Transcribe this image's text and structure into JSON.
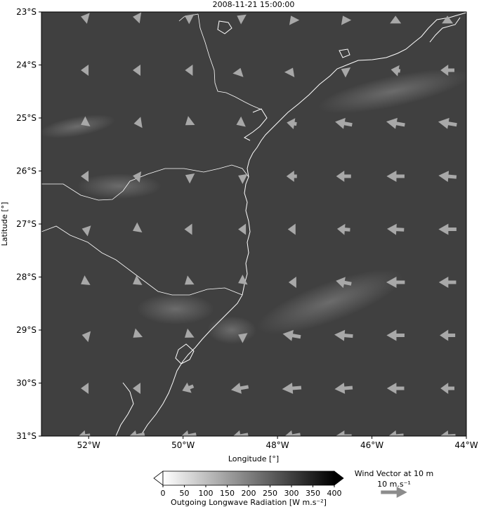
{
  "title": "2008-11-21 15:00:00",
  "map": {
    "lon_range": [
      -53,
      -44
    ],
    "lat_range": [
      -31,
      -23
    ],
    "field_color": "#404040",
    "coast_color": "#ffffff"
  },
  "axes": {
    "xlabel": "Longitude [°]",
    "ylabel": "Latitude [°]",
    "xticks": [
      {
        "value": -52,
        "label": "52°W"
      },
      {
        "value": -50,
        "label": "50°W"
      },
      {
        "value": -48,
        "label": "48°W"
      },
      {
        "value": -46,
        "label": "46°W"
      },
      {
        "value": -44,
        "label": "44°W"
      }
    ],
    "yticks": [
      {
        "value": -23,
        "label": "23°S"
      },
      {
        "value": -24,
        "label": "24°S"
      },
      {
        "value": -25,
        "label": "25°S"
      },
      {
        "value": -26,
        "label": "26°S"
      },
      {
        "value": -27,
        "label": "27°S"
      },
      {
        "value": -28,
        "label": "28°S"
      },
      {
        "value": -29,
        "label": "29°S"
      },
      {
        "value": -30,
        "label": "30°S"
      },
      {
        "value": -31,
        "label": "31°S"
      }
    ]
  },
  "colorbar": {
    "label": "Outgoing Longwave Radiation [W m.s⁻²]",
    "ticks": [
      "0",
      "50",
      "100",
      "150",
      "200",
      "250",
      "300",
      "350",
      "400"
    ],
    "range": [
      0,
      400
    ],
    "color_low": "#ffffff",
    "color_high": "#000000"
  },
  "wind_key": {
    "title": "Wind Vector at 10 m",
    "label": "10 m.s⁻¹",
    "speed": 10,
    "arrow_color": "#8c8c8c"
  },
  "wind": {
    "arrow_color": "#a8a8a8",
    "lons": [
      -52.1,
      -51.0,
      -49.9,
      -48.8,
      -47.7,
      -46.6,
      -45.5,
      -44.4
    ],
    "lats": [
      -23.1,
      -24.1,
      -25.1,
      -26.1,
      -27.1,
      -28.1,
      -29.1,
      -30.1,
      -31.0
    ],
    "u": [
      [
        -2,
        -2,
        -2,
        -1.8,
        -0.5,
        -0.5,
        0,
        0
      ],
      [
        -2,
        -2,
        -1.8,
        0.5,
        0.8,
        -1.6,
        -3,
        -4.5
      ],
      [
        -2,
        -1.3,
        -1.6,
        -2.2,
        -3.2,
        -5.5,
        -6,
        -6
      ],
      [
        -2,
        -2,
        -1.6,
        -1,
        -3.4,
        -4.8,
        -5.8,
        -5.8
      ],
      [
        -1.3,
        -2,
        -2.2,
        -1,
        -2.5,
        -4.2,
        -5.5,
        -5.8
      ],
      [
        -2,
        -2,
        -2,
        -1,
        -2,
        -5,
        -6,
        -5.6
      ],
      [
        -1.3,
        -1.8,
        -2,
        -1,
        -5.8,
        -6,
        -5.8,
        -5
      ],
      [
        -2,
        -2,
        -3.6,
        -5.6,
        -6.2,
        -5.8,
        -5.6,
        -4.5
      ],
      [
        -4,
        -5.6,
        -5.4,
        -5.4,
        -5.6,
        -5.2,
        -5.2,
        -5.2
      ]
    ],
    "v": [
      [
        0.5,
        0.3,
        1,
        1,
        1,
        1,
        1,
        1
      ],
      [
        0,
        0,
        0,
        1.5,
        1.6,
        0.8,
        0.5,
        0
      ],
      [
        -1,
        -0.2,
        -1.2,
        -1,
        0.5,
        1,
        1.1,
        1
      ],
      [
        0,
        0.3,
        0.8,
        0.5,
        0,
        0,
        0,
        0.5
      ],
      [
        0.4,
        -1,
        0,
        0,
        0,
        0.3,
        0.3,
        0
      ],
      [
        -1.2,
        -1.2,
        -1.5,
        -0.5,
        0,
        1,
        0,
        0
      ],
      [
        0.3,
        -1.5,
        -1.5,
        0.5,
        1,
        0.5,
        0,
        0
      ],
      [
        0,
        0,
        -1.5,
        -1,
        -0.5,
        -0.5,
        0,
        0
      ],
      [
        -0.5,
        -1.3,
        -1.1,
        -1,
        -1,
        0,
        -0.5,
        -0.3
      ]
    ]
  }
}
